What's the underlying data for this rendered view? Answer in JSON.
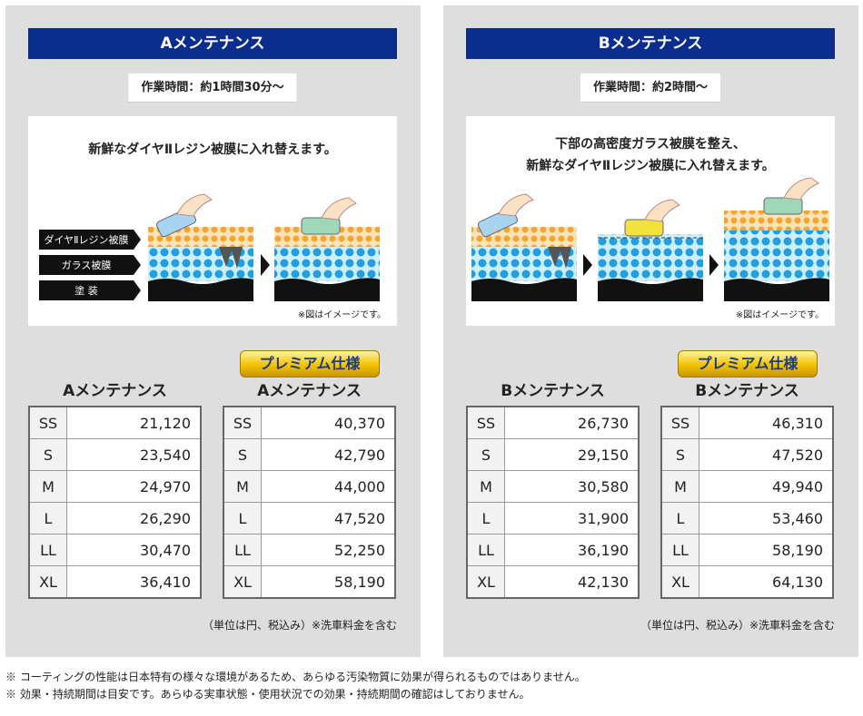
{
  "panels": [
    {
      "title": "Aメンテナンス",
      "time": "作業時間：約1時間30分～",
      "description": [
        "新鮮なダイヤⅡレジン被膜に入れ替えます。"
      ],
      "layers": [
        "ダイヤⅡレジン被膜",
        "ガラス被膜",
        "塗 装"
      ],
      "image_note": "※図はイメージです。",
      "tables": [
        {
          "heading": "Aメンテナンス",
          "rows": [
            [
              "SS",
              "21,120"
            ],
            [
              "S",
              "23,540"
            ],
            [
              "M",
              "24,970"
            ],
            [
              "L",
              "26,290"
            ],
            [
              "LL",
              "30,470"
            ],
            [
              "XL",
              "36,410"
            ]
          ]
        },
        {
          "badge": "プレミアム仕様",
          "heading": "Aメンテナンス",
          "rows": [
            [
              "SS",
              "40,370"
            ],
            [
              "S",
              "42,790"
            ],
            [
              "M",
              "44,000"
            ],
            [
              "L",
              "47,520"
            ],
            [
              "LL",
              "52,250"
            ],
            [
              "XL",
              "58,190"
            ]
          ]
        }
      ],
      "unit_note": "（単位は円、税込み）※洗車料金を含む"
    },
    {
      "title": "Bメンテナンス",
      "time": "作業時間：約2時間～",
      "description": [
        "下部の高密度ガラス被膜を整え、",
        "新鮮なダイヤⅡレジン被膜に入れ替えます。"
      ],
      "image_note": "※図はイメージです。",
      "tables": [
        {
          "heading": "Bメンテナンス",
          "rows": [
            [
              "SS",
              "26,730"
            ],
            [
              "S",
              "29,150"
            ],
            [
              "M",
              "30,580"
            ],
            [
              "L",
              "31,900"
            ],
            [
              "LL",
              "36,190"
            ],
            [
              "XL",
              "42,130"
            ]
          ]
        },
        {
          "badge": "プレミアム仕様",
          "heading": "Bメンテナンス",
          "rows": [
            [
              "SS",
              "46,310"
            ],
            [
              "S",
              "47,520"
            ],
            [
              "M",
              "49,940"
            ],
            [
              "L",
              "53,460"
            ],
            [
              "LL",
              "58,190"
            ],
            [
              "XL",
              "64,130"
            ]
          ]
        }
      ],
      "unit_note": "（単位は円、税込み）※洗車料金を含む"
    }
  ],
  "footnotes": [
    "※ コーティングの性能は日本特有の様々な環境があるため、あらゆる汚染物質に効果が得られるものではありません。",
    "※ 効果・持続期間は目安です。あらゆる実車状態・使用状況での効果・持続期間の確認はしておりません。"
  ]
}
